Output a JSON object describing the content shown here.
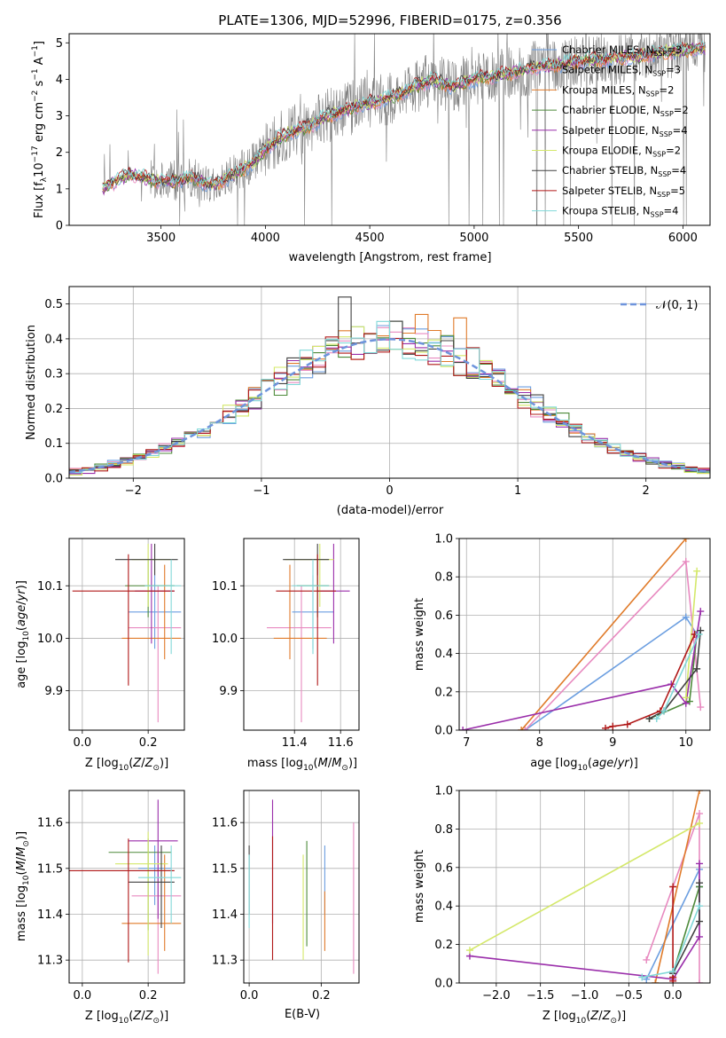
{
  "figure": {
    "title": "PLATE=1306, MJD=52996, FIBERID=0175, z=0.356",
    "legend_models": [
      {
        "label": "Chabrier MILES, N_SSP=3",
        "text": "Chabrier MILES, N",
        "sub": "SSP",
        "n": "=3",
        "color": "#6b9ee0"
      },
      {
        "label": "Salpeter MILES, N_SSP=3",
        "text": "Salpeter MILES, N",
        "sub": "SSP",
        "n": "=3",
        "color": "#e88ac0"
      },
      {
        "label": "Kroupa MILES, N_SSP=2",
        "text": "Kroupa MILES, N",
        "sub": "SSP",
        "n": "=2",
        "color": "#e07b2a"
      },
      {
        "label": "Chabrier ELODIE, N_SSP=2",
        "text": "Chabrier ELODIE, N",
        "sub": "SSP",
        "n": "=2",
        "color": "#4d8a3a"
      },
      {
        "label": "Salpeter ELODIE, N_SSP=4",
        "text": "Salpeter ELODIE, N",
        "sub": "SSP",
        "n": "=4",
        "color": "#9a2eaa"
      },
      {
        "label": "Kroupa ELODIE, N_SSP=2",
        "text": "Kroupa ELODIE, N",
        "sub": "SSP",
        "n": "=2",
        "color": "#d4e86a"
      },
      {
        "label": "Chabrier STELIB, N_SSP=4",
        "text": "Chabrier STELIB, N",
        "sub": "SSP",
        "n": "=4",
        "color": "#404040"
      },
      {
        "label": "Salpeter STELIB, N_SSP=5",
        "text": "Salpeter STELIB, N",
        "sub": "SSP",
        "n": "=5",
        "color": "#b01818"
      },
      {
        "label": "Kroupa STELIB, N_SSP=4",
        "text": "Kroupa STELIB, N",
        "sub": "SSP",
        "n": "=4",
        "color": "#80d8d8"
      }
    ],
    "data_color": "#808080"
  },
  "chart_data": [
    {
      "id": "spectrum",
      "type": "line",
      "xlabel": "wavelength [Angstrom, rest frame]",
      "ylabel_text": "Flux [f",
      "xlim": [
        3060,
        6130
      ],
      "ylim": [
        0,
        5.25
      ],
      "xticks": [
        3500,
        4000,
        4500,
        5000,
        5500,
        6000
      ],
      "yticks": [
        0,
        1,
        2,
        3,
        4,
        5
      ],
      "x_start": 3220,
      "model_anchor_x": [
        3220,
        3260,
        3350,
        3450,
        3550,
        3650,
        3750,
        3850,
        3950,
        4000,
        4100,
        4200,
        4300,
        4400,
        4500,
        4600,
        4700,
        4800,
        4900,
        5000,
        5100,
        5200,
        5300,
        5400,
        5500,
        5600,
        5700,
        5800,
        5900,
        6000,
        6100
      ],
      "model_anchor_y": [
        1.0,
        1.15,
        1.4,
        1.25,
        1.2,
        1.3,
        1.1,
        1.4,
        1.75,
        2.1,
        2.5,
        2.7,
        3.0,
        3.2,
        3.35,
        3.5,
        3.75,
        4.0,
        3.8,
        4.0,
        4.1,
        4.2,
        4.35,
        4.4,
        4.5,
        4.55,
        4.6,
        4.65,
        4.75,
        4.8,
        4.85
      ]
    },
    {
      "id": "residuals",
      "type": "histogram",
      "xlabel": "(data-model)/error",
      "ylabel": "Normed distribution",
      "xlim": [
        -2.5,
        2.5
      ],
      "ylim": [
        0,
        0.55
      ],
      "xticks": [
        -2,
        -1,
        0,
        1,
        2
      ],
      "yticks": [
        0.0,
        0.1,
        0.2,
        0.3,
        0.4,
        0.5
      ],
      "bin_width": 0.1,
      "normal_label": "𝒩(0, 1)",
      "normal_color": "#6e94dc",
      "highlight_bins": [
        {
          "x": -0.35,
          "y": 0.52
        },
        {
          "x": 0.25,
          "y": 0.47
        },
        {
          "x": 0.55,
          "y": 0.46
        }
      ]
    },
    {
      "id": "age_vs_Z",
      "type": "errorbar",
      "xlabel": "Z [log",
      "ylabel": "age  [log",
      "xlim": [
        -0.04,
        0.31
      ],
      "ylim": [
        9.825,
        10.19
      ],
      "xticks": [
        0.0,
        0.2
      ],
      "yticks": [
        9.9,
        10.0,
        10.1
      ],
      "points": [
        {
          "m": 0,
          "x": 0.22,
          "y": 10.05,
          "xerr": [
            0.08,
            0.08
          ],
          "yerr": [
            0.07,
            0.07
          ]
        },
        {
          "m": 1,
          "x": 0.23,
          "y": 10.02,
          "xerr": [
            0.09,
            0.07
          ],
          "yerr": [
            0.18,
            0.08
          ]
        },
        {
          "m": 2,
          "x": 0.25,
          "y": 10.0,
          "xerr": [
            0.13,
            0.05
          ],
          "yerr": [
            0.04,
            0.14
          ]
        },
        {
          "m": 3,
          "x": 0.2,
          "y": 10.1,
          "xerr": [
            0.07,
            0.08
          ],
          "yerr": [
            0.06,
            0.05
          ]
        },
        {
          "m": 4,
          "x": 0.21,
          "y": 10.09,
          "xerr": [
            0.05,
            0.07
          ],
          "yerr": [
            0.1,
            0.09
          ]
        },
        {
          "m": 5,
          "x": 0.2,
          "y": 10.15,
          "xerr": [
            0.05,
            0.07
          ],
          "yerr": [
            0.09,
            0.03
          ]
        },
        {
          "m": 6,
          "x": 0.22,
          "y": 10.15,
          "xerr": [
            0.12,
            0.07
          ],
          "yerr": [
            0.03,
            0.03
          ]
        },
        {
          "m": 7,
          "x": 0.14,
          "y": 10.09,
          "xerr": [
            0.17,
            0.14
          ],
          "yerr": [
            0.18,
            0.07
          ]
        },
        {
          "m": 8,
          "x": 0.27,
          "y": 10.1,
          "xerr": [
            0.08,
            0.03
          ],
          "yerr": [
            0.13,
            0.05
          ]
        }
      ]
    },
    {
      "id": "age_vs_mass",
      "type": "errorbar",
      "xlabel": "mass [log",
      "ylabel": "",
      "xlim": [
        11.18,
        11.68
      ],
      "ylim": [
        9.825,
        10.19
      ],
      "xticks": [
        11.4,
        11.6
      ],
      "yticks": [
        9.9,
        10.0,
        10.1
      ],
      "points": [
        {
          "m": 0,
          "x": 11.48,
          "y": 10.05,
          "xerr": [
            0.09,
            0.09
          ],
          "yerr": [
            0.07,
            0.07
          ]
        },
        {
          "m": 1,
          "x": 11.43,
          "y": 10.02,
          "xerr": [
            0.15,
            0.13
          ],
          "yerr": [
            0.18,
            0.08
          ]
        },
        {
          "m": 2,
          "x": 11.38,
          "y": 10.0,
          "xerr": [
            0.07,
            0.16
          ],
          "yerr": [
            0.04,
            0.14
          ]
        },
        {
          "m": 3,
          "x": 11.5,
          "y": 10.1,
          "xerr": [
            0.09,
            0.05
          ],
          "yerr": [
            0.06,
            0.05
          ]
        },
        {
          "m": 4,
          "x": 11.57,
          "y": 10.09,
          "xerr": [
            0.07,
            0.07
          ],
          "yerr": [
            0.1,
            0.09
          ]
        },
        {
          "m": 5,
          "x": 11.51,
          "y": 10.15,
          "xerr": [
            0.15,
            0.06
          ],
          "yerr": [
            0.09,
            0.03
          ]
        },
        {
          "m": 6,
          "x": 11.5,
          "y": 10.15,
          "xerr": [
            0.15,
            0.05
          ],
          "yerr": [
            0.03,
            0.03
          ]
        },
        {
          "m": 7,
          "x": 11.5,
          "y": 10.09,
          "xerr": [
            0.18,
            0.08
          ],
          "yerr": [
            0.18,
            0.07
          ]
        },
        {
          "m": 8,
          "x": 11.48,
          "y": 10.1,
          "xerr": [
            0.09,
            0.07
          ],
          "yerr": [
            0.13,
            0.05
          ]
        }
      ]
    },
    {
      "id": "weight_vs_age",
      "type": "line",
      "xlabel": "age  [log",
      "ylabel": "mass weight",
      "xlim": [
        6.9,
        10.33
      ],
      "ylim": [
        0,
        1.0
      ],
      "xticks": [
        7,
        8,
        9,
        10
      ],
      "yticks": [
        0.0,
        0.2,
        0.4,
        0.6,
        0.8,
        1.0
      ],
      "series": [
        {
          "m": 0,
          "x": [
            7.8,
            10.0,
            10.15
          ],
          "y": [
            0.0,
            0.59,
            0.5
          ]
        },
        {
          "m": 1,
          "x": [
            7.8,
            10.0,
            10.2
          ],
          "y": [
            0.0,
            0.88,
            0.12
          ]
        },
        {
          "m": 2,
          "x": [
            7.75,
            10.0
          ],
          "y": [
            0.0,
            1.0
          ]
        },
        {
          "m": 3,
          "x": [
            9.5,
            10.05,
            10.15
          ],
          "y": [
            0.06,
            0.15,
            0.5
          ]
        },
        {
          "m": 4,
          "x": [
            6.95,
            9.8,
            10.0,
            10.2
          ],
          "y": [
            0.0,
            0.24,
            0.14,
            0.62
          ]
        },
        {
          "m": 5,
          "x": [
            10.0,
            10.15
          ],
          "y": [
            0.17,
            0.83
          ]
        },
        {
          "m": 6,
          "x": [
            9.5,
            9.7,
            10.15,
            10.2
          ],
          "y": [
            0.06,
            0.1,
            0.32,
            0.52
          ]
        },
        {
          "m": 7,
          "x": [
            8.9,
            9.0,
            9.2,
            9.65,
            10.12
          ],
          "y": [
            0.01,
            0.02,
            0.03,
            0.1,
            0.5
          ]
        },
        {
          "m": 8,
          "x": [
            9.6,
            9.7,
            10.18
          ],
          "y": [
            0.06,
            0.1,
            0.5
          ]
        }
      ]
    },
    {
      "id": "mass_vs_Z",
      "type": "errorbar",
      "xlabel": "Z [log",
      "ylabel": "mass [log",
      "xlim": [
        -0.04,
        0.31
      ],
      "ylim": [
        11.25,
        11.67
      ],
      "xticks": [
        0.0,
        0.2
      ],
      "yticks": [
        11.3,
        11.4,
        11.5,
        11.6
      ],
      "points": [
        {
          "m": 0,
          "x": 0.22,
          "y": 11.5,
          "xerr": [
            0.05,
            0.05
          ],
          "yerr": [
            0.08,
            0.05
          ]
        },
        {
          "m": 1,
          "x": 0.23,
          "y": 11.44,
          "xerr": [
            0.08,
            0.07
          ],
          "yerr": [
            0.17,
            0.1
          ]
        },
        {
          "m": 2,
          "x": 0.25,
          "y": 11.38,
          "xerr": [
            0.13,
            0.05
          ],
          "yerr": [
            0.06,
            0.15
          ]
        },
        {
          "m": 3,
          "x": 0.2,
          "y": 11.535,
          "xerr": [
            0.12,
            0.07
          ],
          "yerr": [
            0.17,
            0.03
          ]
        },
        {
          "m": 4,
          "x": 0.23,
          "y": 11.56,
          "xerr": [
            0.09,
            0.06
          ],
          "yerr": [
            0.17,
            0.09
          ]
        },
        {
          "m": 5,
          "x": 0.2,
          "y": 11.51,
          "xerr": [
            0.1,
            0.06
          ],
          "yerr": [
            0.2,
            0.07
          ]
        },
        {
          "m": 6,
          "x": 0.24,
          "y": 11.47,
          "xerr": [
            0.1,
            0.04
          ],
          "yerr": [
            0.1,
            0.08
          ]
        },
        {
          "m": 7,
          "x": 0.14,
          "y": 11.495,
          "xerr": [
            0.18,
            0.14
          ],
          "yerr": [
            0.2,
            0.07
          ]
        },
        {
          "m": 8,
          "x": 0.27,
          "y": 11.48,
          "xerr": [
            0.1,
            0.03
          ],
          "yerr": [
            0.1,
            0.07
          ]
        }
      ]
    },
    {
      "id": "mass_vs_EBV",
      "type": "errorbar",
      "xlabel": "E(B-V)",
      "ylabel": "",
      "xlim": [
        -0.015,
        0.305
      ],
      "ylim": [
        11.25,
        11.67
      ],
      "xticks": [
        0.0,
        0.2
      ],
      "yticks": [
        11.3,
        11.4,
        11.5,
        11.6
      ],
      "points": [
        {
          "m": 0,
          "x": 0.21,
          "y": 11.48,
          "xerr": [
            0,
            0
          ],
          "yerr": [
            0.08,
            0.07
          ]
        },
        {
          "m": 1,
          "x": 0.29,
          "y": 11.44,
          "xerr": [
            0,
            0
          ],
          "yerr": [
            0.17,
            0.16
          ]
        },
        {
          "m": 2,
          "x": 0.21,
          "y": 11.38,
          "xerr": [
            0,
            0
          ],
          "yerr": [
            0.06,
            0.07
          ]
        },
        {
          "m": 3,
          "x": 0.16,
          "y": 11.45,
          "xerr": [
            0,
            0
          ],
          "yerr": [
            0.12,
            0.11
          ]
        },
        {
          "m": 4,
          "x": 0.065,
          "y": 11.55,
          "xerr": [
            0,
            0
          ],
          "yerr": [
            0.17,
            0.1
          ]
        },
        {
          "m": 5,
          "x": 0.15,
          "y": 11.43,
          "xerr": [
            0,
            0
          ],
          "yerr": [
            0.13,
            0.1
          ]
        },
        {
          "m": 6,
          "x": 0.0,
          "y": 11.5,
          "xerr": [
            0,
            0
          ],
          "yerr": [
            0.1,
            0.05
          ]
        },
        {
          "m": 7,
          "x": 0.065,
          "y": 11.43,
          "xerr": [
            0,
            0
          ],
          "yerr": [
            0.13,
            0.14
          ]
        },
        {
          "m": 8,
          "x": 0.0,
          "y": 11.45,
          "xerr": [
            0,
            0
          ],
          "yerr": [
            0.08,
            0.08
          ]
        }
      ]
    },
    {
      "id": "weight_vs_Z",
      "type": "line",
      "xlabel": "Z [log",
      "ylabel": "mass weight",
      "xlim": [
        -2.42,
        0.42
      ],
      "ylim": [
        0,
        1.0
      ],
      "xticks": [
        -2.0,
        -1.5,
        -1.0,
        -0.5,
        0.0
      ],
      "yticks": [
        0.0,
        0.2,
        0.4,
        0.6,
        0.8,
        1.0
      ],
      "series": [
        {
          "m": 0,
          "x": [
            -0.3,
            0.3,
            0.3
          ],
          "y": [
            0.02,
            0.59,
            0.5
          ]
        },
        {
          "m": 1,
          "x": [
            -0.3,
            0.3,
            0.3
          ],
          "y": [
            0.12,
            0.88,
            0.0
          ]
        },
        {
          "m": 2,
          "x": [
            -0.2,
            0.3
          ],
          "y": [
            0.0,
            1.0
          ]
        },
        {
          "m": 3,
          "x": [
            0.0,
            0.3
          ],
          "y": [
            0.05,
            0.5
          ]
        },
        {
          "m": 4,
          "x": [
            -2.3,
            0.0,
            0.3,
            0.3
          ],
          "y": [
            0.14,
            0.02,
            0.24,
            0.62
          ]
        },
        {
          "m": 5,
          "x": [
            -2.3,
            0.3
          ],
          "y": [
            0.17,
            0.83
          ]
        },
        {
          "m": 6,
          "x": [
            0.0,
            0.3,
            0.3
          ],
          "y": [
            0.05,
            0.32,
            0.52
          ]
        },
        {
          "m": 7,
          "x": [
            0.0,
            0.0,
            0.0
          ],
          "y": [
            0.01,
            0.03,
            0.5
          ]
        },
        {
          "m": 8,
          "x": [
            -0.35,
            0.0,
            0.3
          ],
          "y": [
            0.03,
            0.06,
            0.4
          ]
        }
      ]
    }
  ]
}
